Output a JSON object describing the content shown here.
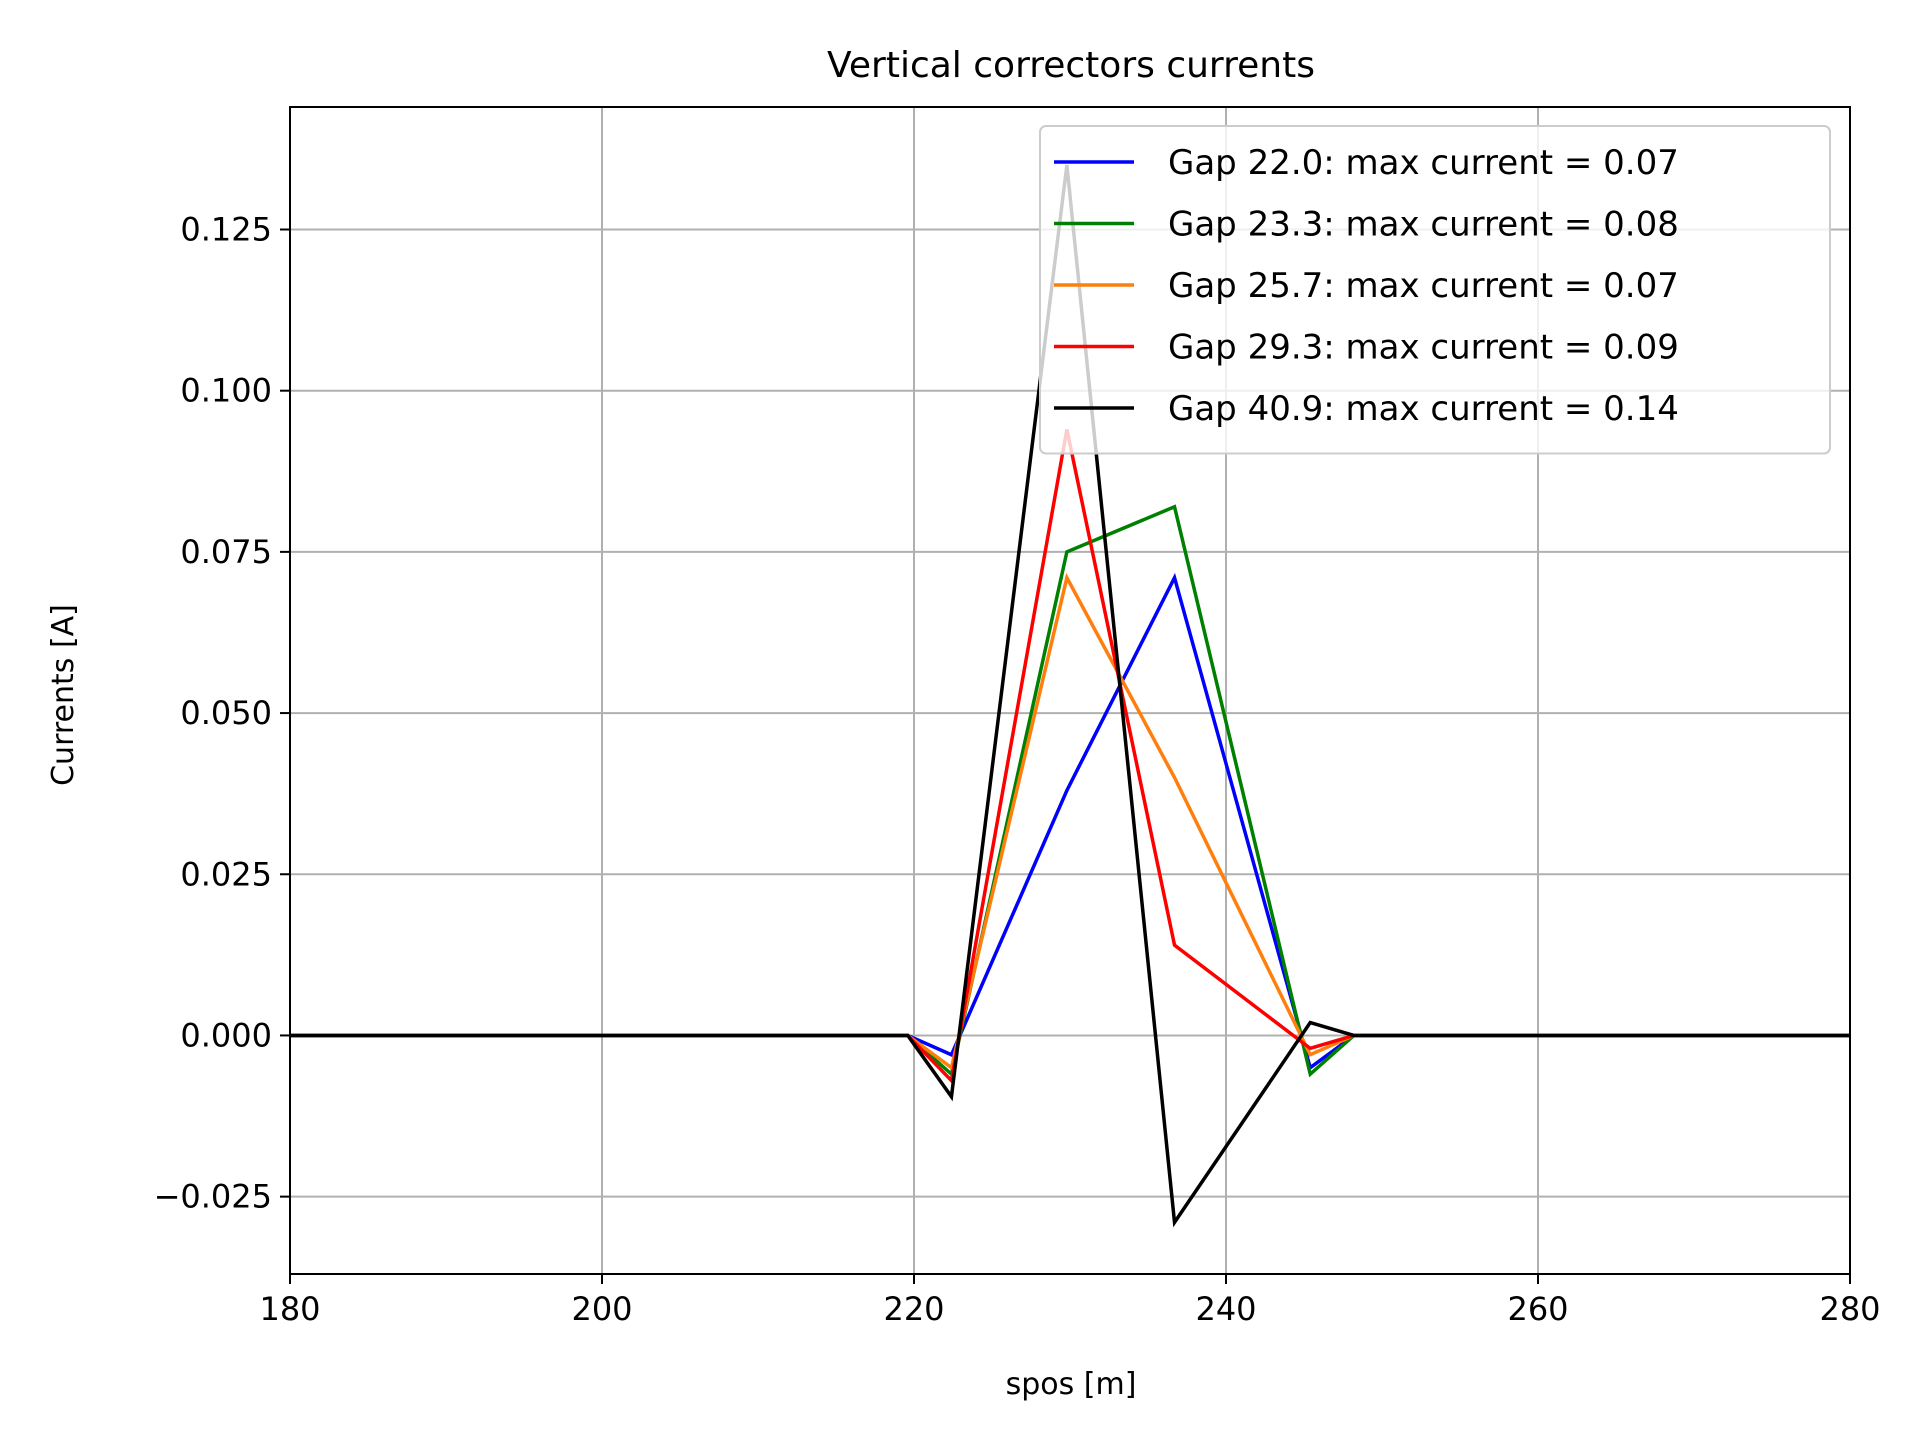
{
  "chart_data": {
    "type": "line",
    "title": "Vertical correctors currents",
    "xlabel": "spos [m]",
    "ylabel": "Currents [A]",
    "xlim": [
      180,
      280
    ],
    "ylim": [
      -0.037,
      0.144
    ],
    "xticks": [
      180,
      200,
      220,
      240,
      260,
      280
    ],
    "yticks": [
      -0.025,
      0.0,
      0.025,
      0.05,
      0.075,
      0.1,
      0.125
    ],
    "xtick_labels": [
      "180",
      "200",
      "220",
      "240",
      "260",
      "280"
    ],
    "ytick_labels": [
      "−0.025",
      "0.000",
      "0.025",
      "0.050",
      "0.075",
      "0.100",
      "0.125"
    ],
    "grid": true,
    "legend_position": "upper right",
    "series": [
      {
        "name": "Gap 22.0: max current = 0.07",
        "color": "#0000ff",
        "x": [
          180,
          219.6,
          222.4,
          229.8,
          236.7,
          245.4,
          248.2,
          280
        ],
        "y": [
          0,
          0,
          -0.003,
          0.038,
          0.071,
          -0.005,
          0,
          0
        ]
      },
      {
        "name": "Gap 23.3: max current = 0.08",
        "color": "#008000",
        "x": [
          180,
          219.6,
          222.4,
          229.8,
          236.7,
          245.4,
          248.2,
          280
        ],
        "y": [
          0,
          0,
          -0.006,
          0.075,
          0.082,
          -0.006,
          0,
          0
        ]
      },
      {
        "name": "Gap 25.7: max current = 0.07",
        "color": "#ff7f0e",
        "x": [
          180,
          219.6,
          222.4,
          229.8,
          236.7,
          245.4,
          248.2,
          280
        ],
        "y": [
          0,
          0,
          -0.005,
          0.071,
          0.04,
          -0.003,
          0,
          0
        ]
      },
      {
        "name": "Gap 29.3: max current = 0.09",
        "color": "#ff0000",
        "x": [
          180,
          219.6,
          222.4,
          229.8,
          236.7,
          245.4,
          248.2,
          280
        ],
        "y": [
          0,
          0,
          -0.007,
          0.094,
          0.014,
          -0.002,
          0,
          0
        ]
      },
      {
        "name": "Gap 40.9: max current = 0.14",
        "color": "#000000",
        "x": [
          180,
          219.6,
          222.4,
          229.8,
          236.7,
          245.4,
          248.2,
          280
        ],
        "y": [
          0,
          0,
          -0.0095,
          0.135,
          -0.029,
          0.002,
          0,
          0
        ]
      }
    ]
  }
}
